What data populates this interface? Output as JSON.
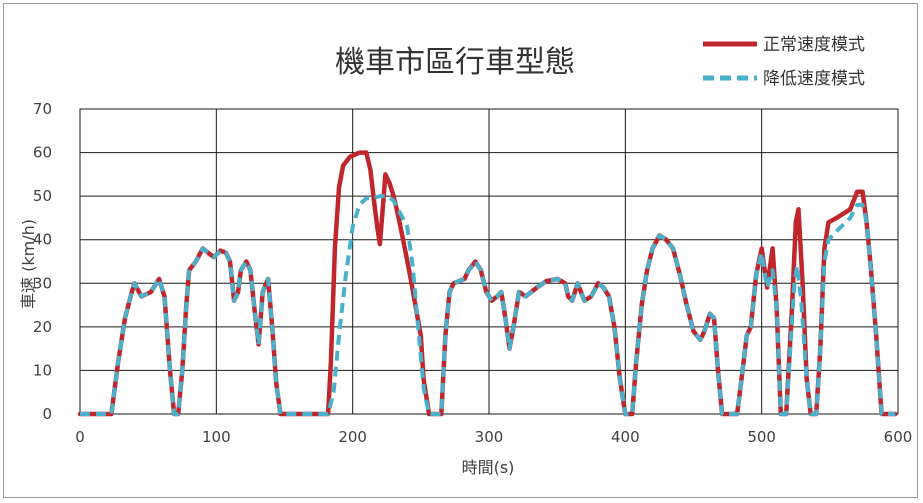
{
  "chart_data": {
    "type": "line",
    "title": "機車市區行車型態",
    "xlabel": "時間(s)",
    "ylabel": "車速 (km/h)",
    "xlim": [
      0,
      600
    ],
    "ylim": [
      0,
      70
    ],
    "x_ticks": [
      0,
      100,
      200,
      300,
      400,
      500,
      600
    ],
    "y_ticks": [
      0,
      10,
      20,
      30,
      40,
      50,
      60,
      70
    ],
    "x_tick_labels": [
      "0",
      "100",
      "200",
      "300",
      "400",
      "500",
      "600"
    ],
    "y_tick_labels": [
      "0",
      "10",
      "20",
      "30",
      "40",
      "50",
      "60",
      "70"
    ],
    "grid": true,
    "legend_position": "top-right",
    "series": [
      {
        "name": "正常速度模式",
        "color": "#c0272d",
        "style": "solid",
        "points": [
          [
            0,
            0
          ],
          [
            23,
            0
          ],
          [
            28,
            12
          ],
          [
            33,
            22
          ],
          [
            38,
            28
          ],
          [
            40,
            30
          ],
          [
            45,
            27
          ],
          [
            52,
            28
          ],
          [
            58,
            31
          ],
          [
            62,
            27
          ],
          [
            66,
            10
          ],
          [
            69,
            0
          ],
          [
            72,
            0
          ],
          [
            75,
            10
          ],
          [
            78,
            25
          ],
          [
            80,
            33
          ],
          [
            85,
            35
          ],
          [
            90,
            38
          ],
          [
            94,
            37
          ],
          [
            98,
            36
          ],
          [
            103,
            37.5
          ],
          [
            107,
            37
          ],
          [
            110,
            35
          ],
          [
            113,
            26
          ],
          [
            116,
            28
          ],
          [
            118,
            33
          ],
          [
            122,
            35
          ],
          [
            125,
            33
          ],
          [
            128,
            24
          ],
          [
            131,
            16
          ],
          [
            134,
            28
          ],
          [
            138,
            31
          ],
          [
            141,
            20
          ],
          [
            144,
            7
          ],
          [
            147,
            0
          ],
          [
            182,
            0
          ],
          [
            184,
            12
          ],
          [
            187,
            38
          ],
          [
            190,
            52
          ],
          [
            193,
            57
          ],
          [
            198,
            59
          ],
          [
            205,
            60
          ],
          [
            210,
            60
          ],
          [
            213,
            56
          ],
          [
            216,
            48
          ],
          [
            218,
            43
          ],
          [
            220,
            39
          ],
          [
            222,
            47
          ],
          [
            224,
            55
          ],
          [
            227,
            53
          ],
          [
            230,
            50
          ],
          [
            233,
            46
          ],
          [
            237,
            40
          ],
          [
            242,
            32
          ],
          [
            246,
            25
          ],
          [
            250,
            18
          ],
          [
            252,
            8
          ],
          [
            256,
            0
          ],
          [
            265,
            0
          ],
          [
            268,
            18
          ],
          [
            271,
            28
          ],
          [
            274,
            30
          ],
          [
            282,
            31
          ],
          [
            285,
            33
          ],
          [
            290,
            35
          ],
          [
            294,
            33
          ],
          [
            298,
            28
          ],
          [
            302,
            26
          ],
          [
            306,
            27
          ],
          [
            309,
            28
          ],
          [
            312,
            22
          ],
          [
            315,
            15
          ],
          [
            318,
            20
          ],
          [
            322,
            28
          ],
          [
            327,
            27
          ],
          [
            335,
            29
          ],
          [
            342,
            30.5
          ],
          [
            350,
            31
          ],
          [
            356,
            30
          ],
          [
            358,
            27
          ],
          [
            361,
            26
          ],
          [
            365,
            30
          ],
          [
            370,
            26
          ],
          [
            375,
            27
          ],
          [
            380,
            30
          ],
          [
            384,
            29
          ],
          [
            388,
            27
          ],
          [
            392,
            20
          ],
          [
            396,
            8
          ],
          [
            400,
            0
          ],
          [
            405,
            0
          ],
          [
            408,
            12
          ],
          [
            412,
            25
          ],
          [
            416,
            33
          ],
          [
            420,
            38
          ],
          [
            425,
            41
          ],
          [
            430,
            40
          ],
          [
            435,
            38
          ],
          [
            440,
            32
          ],
          [
            445,
            25
          ],
          [
            450,
            19
          ],
          [
            455,
            17
          ],
          [
            458,
            19
          ],
          [
            462,
            23
          ],
          [
            465,
            22
          ],
          [
            468,
            10
          ],
          [
            471,
            0
          ],
          [
            482,
            0
          ],
          [
            486,
            10
          ],
          [
            489,
            18
          ],
          [
            492,
            20
          ],
          [
            496,
            32
          ],
          [
            500,
            38
          ],
          [
            504,
            29
          ],
          [
            508,
            38
          ],
          [
            511,
            24
          ],
          [
            514,
            0
          ],
          [
            518,
            0
          ],
          [
            522,
            23
          ],
          [
            525,
            44
          ],
          [
            527,
            47
          ],
          [
            530,
            30
          ],
          [
            533,
            8
          ],
          [
            536,
            0
          ],
          [
            540,
            0
          ],
          [
            543,
            15
          ],
          [
            546,
            38
          ],
          [
            549,
            44
          ],
          [
            555,
            45
          ],
          [
            565,
            47
          ],
          [
            570,
            51
          ],
          [
            574,
            51
          ],
          [
            577,
            44
          ],
          [
            580,
            34
          ],
          [
            584,
            18
          ],
          [
            588,
            0
          ],
          [
            598,
            0
          ]
        ]
      },
      {
        "name": "降低速度模式",
        "color": "#4ab1cc",
        "style": "dashed",
        "points": [
          [
            0,
            0
          ],
          [
            23,
            0
          ],
          [
            28,
            12
          ],
          [
            33,
            22
          ],
          [
            38,
            28
          ],
          [
            40,
            30
          ],
          [
            45,
            27
          ],
          [
            52,
            28
          ],
          [
            58,
            31
          ],
          [
            62,
            27
          ],
          [
            66,
            10
          ],
          [
            69,
            0
          ],
          [
            72,
            0
          ],
          [
            75,
            10
          ],
          [
            78,
            25
          ],
          [
            80,
            33
          ],
          [
            85,
            35
          ],
          [
            90,
            38
          ],
          [
            94,
            37
          ],
          [
            98,
            36
          ],
          [
            103,
            37.5
          ],
          [
            107,
            37
          ],
          [
            110,
            35
          ],
          [
            113,
            26
          ],
          [
            116,
            28
          ],
          [
            118,
            33
          ],
          [
            122,
            35
          ],
          [
            125,
            33
          ],
          [
            128,
            24
          ],
          [
            131,
            16
          ],
          [
            134,
            28
          ],
          [
            138,
            31
          ],
          [
            141,
            20
          ],
          [
            144,
            7
          ],
          [
            147,
            0
          ],
          [
            182,
            0
          ],
          [
            186,
            5
          ],
          [
            190,
            18
          ],
          [
            195,
            32
          ],
          [
            200,
            43
          ],
          [
            205,
            48
          ],
          [
            210,
            49.5
          ],
          [
            215,
            49.5
          ],
          [
            220,
            50
          ],
          [
            225,
            50
          ],
          [
            230,
            49
          ],
          [
            235,
            46
          ],
          [
            240,
            43
          ],
          [
            244,
            34
          ],
          [
            248,
            20
          ],
          [
            252,
            6
          ],
          [
            256,
            0
          ],
          [
            265,
            0
          ],
          [
            268,
            18
          ],
          [
            271,
            28
          ],
          [
            274,
            30
          ],
          [
            282,
            31
          ],
          [
            285,
            33
          ],
          [
            290,
            35
          ],
          [
            294,
            33
          ],
          [
            298,
            28
          ],
          [
            302,
            26
          ],
          [
            306,
            27
          ],
          [
            309,
            28
          ],
          [
            312,
            22
          ],
          [
            315,
            15
          ],
          [
            318,
            20
          ],
          [
            322,
            28
          ],
          [
            327,
            27
          ],
          [
            335,
            29
          ],
          [
            342,
            30.5
          ],
          [
            350,
            31
          ],
          [
            356,
            30
          ],
          [
            358,
            27
          ],
          [
            361,
            26
          ],
          [
            365,
            30
          ],
          [
            370,
            26
          ],
          [
            375,
            27
          ],
          [
            380,
            30
          ],
          [
            384,
            29
          ],
          [
            388,
            27
          ],
          [
            392,
            20
          ],
          [
            396,
            8
          ],
          [
            400,
            0
          ],
          [
            405,
            0
          ],
          [
            408,
            12
          ],
          [
            412,
            25
          ],
          [
            416,
            33
          ],
          [
            420,
            38
          ],
          [
            425,
            41
          ],
          [
            430,
            40
          ],
          [
            435,
            38
          ],
          [
            440,
            32
          ],
          [
            445,
            25
          ],
          [
            450,
            19
          ],
          [
            455,
            17
          ],
          [
            458,
            19
          ],
          [
            462,
            23
          ],
          [
            465,
            22
          ],
          [
            468,
            10
          ],
          [
            471,
            0
          ],
          [
            482,
            0
          ],
          [
            486,
            10
          ],
          [
            489,
            18
          ],
          [
            492,
            20
          ],
          [
            496,
            32
          ],
          [
            500,
            37
          ],
          [
            504,
            29
          ],
          [
            508,
            33
          ],
          [
            511,
            24
          ],
          [
            514,
            0
          ],
          [
            518,
            0
          ],
          [
            521,
            15
          ],
          [
            524,
            30
          ],
          [
            526,
            34
          ],
          [
            529,
            26
          ],
          [
            533,
            8
          ],
          [
            536,
            0
          ],
          [
            540,
            0
          ],
          [
            543,
            15
          ],
          [
            546,
            35
          ],
          [
            549,
            40
          ],
          [
            555,
            42
          ],
          [
            565,
            45
          ],
          [
            570,
            48
          ],
          [
            574,
            48
          ],
          [
            577,
            44
          ],
          [
            580,
            34
          ],
          [
            584,
            18
          ],
          [
            588,
            0
          ],
          [
            598,
            0
          ]
        ]
      }
    ]
  }
}
